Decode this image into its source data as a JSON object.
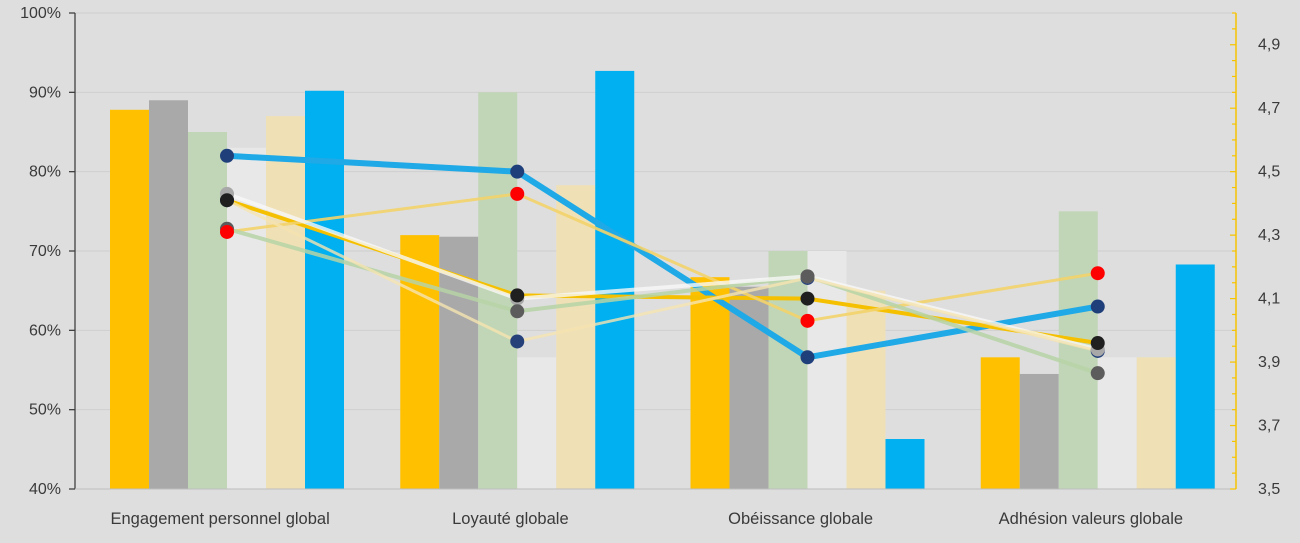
{
  "chart_data": {
    "type": "bar",
    "title": "",
    "xlabel": "",
    "ylabel": "",
    "categories": [
      "Engagement personnel global",
      "Loyauté globale",
      "Obéissance globale",
      "Adhésion valeurs globale"
    ],
    "left_axis": {
      "ylim": [
        40,
        100
      ],
      "ticks": [
        40,
        50,
        60,
        70,
        80,
        90,
        100
      ],
      "tick_labels": [
        "40%",
        "50%",
        "60%",
        "70%",
        "80%",
        "90%",
        "100%"
      ]
    },
    "right_axis": {
      "ylim": [
        3.5,
        5.0
      ],
      "ticks": [
        3.5,
        3.7,
        3.9,
        4.1,
        4.3,
        4.5,
        4.7,
        4.9
      ],
      "tick_labels": [
        "3,5",
        "3,7",
        "3,9",
        "4,1",
        "4,3",
        "4,5",
        "4,7",
        "4,9"
      ],
      "color": "#f5c400"
    },
    "bar_series": [
      {
        "color": "#ffc000",
        "values": [
          87.8,
          72.0,
          66.7,
          56.6
        ]
      },
      {
        "color": "#a9a9a9",
        "values": [
          89.0,
          71.8,
          65.5,
          54.5
        ]
      },
      {
        "color": "#c1d6b6",
        "values": [
          85.0,
          90.0,
          70.0,
          75.0
        ]
      },
      {
        "color": "#e8e8e8",
        "values": [
          83.0,
          56.6,
          70.0,
          56.6
        ]
      },
      {
        "color": "#f0e0b6",
        "values": [
          87.0,
          78.3,
          65.0,
          56.6
        ]
      },
      {
        "color": "#00b0f0",
        "values": [
          90.2,
          92.7,
          46.3,
          68.3
        ]
      }
    ],
    "line_series": [
      {
        "color": "#1fa9e6",
        "width": 6,
        "opacity": 1,
        "marker": "#1f3f7a",
        "values": [
          4.55,
          4.5,
          3.915,
          4.075
        ]
      },
      {
        "color": "#f5c000",
        "width": 4,
        "opacity": 1,
        "marker": "#1f1f1f",
        "values": [
          4.41,
          4.11,
          4.1,
          3.96
        ]
      },
      {
        "color": "#f3d36a",
        "width": 3,
        "opacity": 0.9,
        "marker": "#ff0000",
        "values": [
          4.31,
          4.43,
          4.03,
          4.18
        ]
      },
      {
        "color": "#b6d3a6",
        "width": 4,
        "opacity": 0.85,
        "marker": "#5c5c5c",
        "values": [
          4.32,
          4.06,
          4.17,
          3.865
        ]
      },
      {
        "color": "#f7f7f7",
        "width": 4,
        "opacity": 0.8,
        "marker": "#a8a8a8",
        "values": [
          4.43,
          4.1,
          4.17,
          3.94
        ]
      },
      {
        "color": "#f5e4b0",
        "width": 3,
        "opacity": 0.8,
        "marker": "#26417a",
        "values": [
          4.41,
          3.965,
          4.165,
          3.935
        ]
      }
    ],
    "grid": "horizontal",
    "legend": "none"
  }
}
